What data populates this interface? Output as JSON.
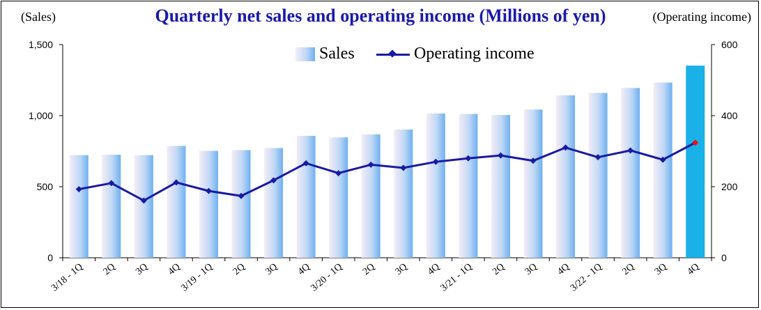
{
  "chart_data": {
    "type": "bar",
    "title": "Quarterly net sales and operating income (Millions of yen)",
    "ylabel_left": "(Sales)",
    "ylabel_right": "(Operating income)",
    "categories": [
      "3/18 - 1Q",
      "2Q",
      "3Q",
      "4Q",
      "3/19 - 1Q",
      "2Q",
      "3Q",
      "4Q",
      "3/20 - 1Q",
      "2Q",
      "3Q",
      "4Q",
      "3/21 - 1Q",
      "2Q",
      "3Q",
      "4Q",
      "3/22 - 1Q",
      "2Q",
      "3Q",
      "4Q"
    ],
    "series": [
      {
        "name": "Sales",
        "type": "bar",
        "axis": "left",
        "values": [
          722,
          725,
          722,
          787,
          752,
          757,
          772,
          858,
          847,
          868,
          902,
          1015,
          1012,
          1005,
          1043,
          1143,
          1160,
          1195,
          1233,
          1352
        ]
      },
      {
        "name": "Operating income",
        "type": "line",
        "axis": "right",
        "values": [
          193,
          210,
          161,
          212,
          188,
          174,
          218,
          266,
          238,
          262,
          253,
          270,
          280,
          288,
          273,
          310,
          283,
          302,
          276,
          324
        ]
      }
    ],
    "ylim_left": [
      0,
      1500
    ],
    "ylim_right": [
      0,
      600
    ],
    "yticks_left": [
      "0",
      "500",
      "1,000",
      "1,500"
    ],
    "yticks_right": [
      "0",
      "200",
      "400",
      "600"
    ],
    "legend_position": "top-center",
    "grid": false,
    "highlight_last": true,
    "colors": {
      "bar_light": "#f4ecf6",
      "bar_mid": "#bfd8f6",
      "bar_dark": "#6fb0f0",
      "bar_highlight": "#1ab0e8",
      "line": "#1a1aa0",
      "marker_highlight": "#ee1111",
      "title": "#1a1aa8"
    }
  }
}
